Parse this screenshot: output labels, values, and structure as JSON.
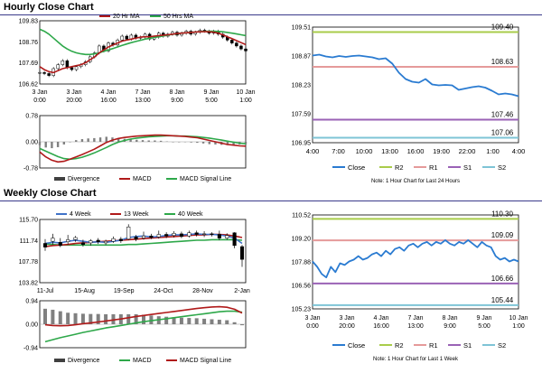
{
  "titles": {
    "hourly": "Hourly Close Chart",
    "weekly": "Weekly Close Chart"
  },
  "colors": {
    "close": "#2a7bd1",
    "ma20": "#b01a1a",
    "ma50": "#2ea84a",
    "r2": "#a9cc4a",
    "r1": "#e59a9a",
    "s1": "#9a62b6",
    "s2": "#7ec4d6",
    "wk4": "#3f72c8",
    "wk13": "#b01a1a",
    "wk40": "#2ea84a",
    "macd": "#b01a1a",
    "signal": "#2ea84a",
    "divergence": "#808080",
    "candle": "#000000"
  },
  "chart_data": [
    {
      "id": "hourly-price",
      "type": "line",
      "legend": [
        "20 Hr MA",
        "50 Hrs MA"
      ],
      "ylim": [
        106.62,
        109.83
      ],
      "yticks": [
        "109.83",
        "108.76",
        "107.69",
        "106.62"
      ],
      "xticks": [
        [
          "3 Jan",
          "0:00"
        ],
        [
          "3 Jan",
          "20:00"
        ],
        [
          "4 Jan",
          "16:00"
        ],
        [
          "7 Jan",
          "13:00"
        ],
        [
          "8 Jan",
          "9:00"
        ],
        [
          "9 Jan",
          "5:00"
        ],
        [
          "10 Jan",
          "1:00"
        ]
      ],
      "close": [
        107.2,
        107.15,
        107.05,
        107.4,
        107.6,
        107.8,
        107.45,
        107.35,
        107.5,
        107.6,
        107.75,
        108.0,
        108.2,
        108.55,
        108.3,
        108.7,
        108.6,
        108.85,
        109.05,
        108.9,
        109.1,
        108.95,
        109.0,
        109.15,
        108.9,
        109.0,
        109.2,
        109.05,
        109.15,
        109.25,
        109.1,
        109.2,
        109.3,
        109.15,
        109.25,
        109.35,
        109.3,
        109.2,
        109.3,
        109.15,
        109.0,
        108.85,
        108.7,
        108.55,
        108.4,
        108.3
      ],
      "ma20": [
        107.5,
        107.35,
        107.25,
        107.2,
        107.3,
        107.4,
        107.45,
        107.5,
        107.55,
        107.6,
        107.7,
        107.85,
        108.0,
        108.2,
        108.35,
        108.5,
        108.6,
        108.7,
        108.8,
        108.85,
        108.9,
        108.95,
        109.0,
        109.02,
        109.02,
        109.05,
        109.08,
        109.1,
        109.12,
        109.15,
        109.18,
        109.2,
        109.22,
        109.24,
        109.26,
        109.27,
        109.28,
        109.27,
        109.25,
        109.2,
        109.12,
        109.02,
        108.92,
        108.82,
        108.72,
        108.62
      ],
      "ma50": [
        109.4,
        109.3,
        109.15,
        108.95,
        108.75,
        108.55,
        108.4,
        108.28,
        108.2,
        108.15,
        108.12,
        108.12,
        108.15,
        108.2,
        108.28,
        108.35,
        108.42,
        108.5,
        108.58,
        108.65,
        108.72,
        108.78,
        108.84,
        108.9,
        108.94,
        108.98,
        109.02,
        109.06,
        109.1,
        109.14,
        109.17,
        109.2,
        109.22,
        109.24,
        109.26,
        109.28,
        109.29,
        109.3,
        109.3,
        109.29,
        109.27,
        109.24,
        109.2,
        109.16,
        109.12,
        109.08
      ]
    },
    {
      "id": "hourly-macd",
      "type": "line",
      "legend": [
        "Divergence",
        "MACD",
        "MACD Signal Line"
      ],
      "ylim": [
        -0.78,
        0.78
      ],
      "yticks": [
        "0.78",
        "0.00",
        "-0.78"
      ],
      "macd": [
        -0.3,
        -0.45,
        -0.55,
        -0.6,
        -0.58,
        -0.52,
        -0.45,
        -0.38,
        -0.3,
        -0.22,
        -0.12,
        -0.02,
        0.05,
        0.1,
        0.13,
        0.15,
        0.17,
        0.18,
        0.19,
        0.2,
        0.2,
        0.19,
        0.18,
        0.17,
        0.16,
        0.14,
        0.12,
        0.08,
        0.04,
        0.0,
        -0.04,
        -0.08,
        -0.1,
        -0.12,
        -0.13
      ],
      "signal": [
        -0.2,
        -0.28,
        -0.36,
        -0.44,
        -0.5,
        -0.52,
        -0.5,
        -0.46,
        -0.4,
        -0.33,
        -0.25,
        -0.17,
        -0.08,
        -0.01,
        0.04,
        0.08,
        0.11,
        0.13,
        0.15,
        0.16,
        0.17,
        0.18,
        0.18,
        0.17,
        0.17,
        0.16,
        0.15,
        0.13,
        0.11,
        0.08,
        0.05,
        0.02,
        -0.01,
        -0.04,
        -0.06
      ],
      "divergence": [
        -0.1,
        -0.17,
        -0.19,
        -0.16,
        -0.08,
        0.0,
        0.05,
        0.08,
        0.1,
        0.11,
        0.13,
        0.15,
        0.13,
        0.11,
        0.09,
        0.07,
        0.06,
        0.05,
        0.04,
        0.04,
        0.03,
        0.01,
        0.0,
        0.0,
        -0.01,
        -0.02,
        -0.03,
        -0.05,
        -0.07,
        -0.08,
        -0.09,
        -0.1,
        -0.09,
        -0.08,
        -0.07
      ]
    },
    {
      "id": "hourly-levels",
      "type": "line",
      "ylim": [
        106.95,
        109.51
      ],
      "yticks": [
        "109.51",
        "108.87",
        "108.23",
        "107.59",
        "106.95"
      ],
      "xticks": [
        "4:00",
        "7:00",
        "10:00",
        "13:00",
        "16:00",
        "19:00",
        "22:00",
        "1:00",
        "4:00"
      ],
      "close": [
        108.88,
        108.9,
        108.86,
        108.84,
        108.87,
        108.85,
        108.87,
        108.88,
        108.86,
        108.84,
        108.8,
        108.82,
        108.7,
        108.5,
        108.36,
        108.3,
        108.28,
        108.36,
        108.24,
        108.22,
        108.23,
        108.22,
        108.12,
        108.15,
        108.18,
        108.2,
        108.17,
        108.1,
        108.02,
        108.04,
        108.02,
        107.98
      ],
      "levels": {
        "R2": 109.4,
        "R1": 108.63,
        "S1": 107.46,
        "S2": 107.06
      },
      "level_labels": {
        "R2": "109.40",
        "R1": "108.63",
        "S1": "107.46",
        "S2": "107.06"
      },
      "legend": [
        "Close",
        "R2",
        "R1",
        "S1",
        "S2"
      ],
      "note": "Note: 1 Hour Chart for Last 24 Hours"
    },
    {
      "id": "weekly-price",
      "type": "line",
      "legend": [
        "4 Week",
        "13 Week",
        "40 Week"
      ],
      "ylim": [
        103.82,
        115.7
      ],
      "yticks": [
        "115.70",
        "111.74",
        "107.78",
        "103.82"
      ],
      "xticks": [
        "11-Jul",
        "15-Aug",
        "19-Sep",
        "24-Oct",
        "28-Nov",
        "2-Jan"
      ],
      "candles": [
        {
          "o": 111.2,
          "c": 110.5,
          "h": 112.0,
          "l": 109.8
        },
        {
          "o": 111.6,
          "c": 112.2,
          "h": 113.0,
          "l": 111.0
        },
        {
          "o": 111.4,
          "c": 110.8,
          "h": 112.2,
          "l": 110.5
        },
        {
          "o": 111.5,
          "c": 111.9,
          "h": 112.8,
          "l": 111.0
        },
        {
          "o": 111.9,
          "c": 112.3,
          "h": 112.6,
          "l": 111.5
        },
        {
          "o": 111.3,
          "c": 111.0,
          "h": 111.9,
          "l": 110.6
        },
        {
          "o": 111.3,
          "c": 111.7,
          "h": 112.0,
          "l": 110.8
        },
        {
          "o": 111.8,
          "c": 111.5,
          "h": 112.2,
          "l": 111.1
        },
        {
          "o": 111.3,
          "c": 111.6,
          "h": 111.9,
          "l": 110.9
        },
        {
          "o": 111.6,
          "c": 112.1,
          "h": 112.5,
          "l": 111.3
        },
        {
          "o": 112.0,
          "c": 111.7,
          "h": 112.4,
          "l": 111.3
        },
        {
          "o": 112.0,
          "c": 114.3,
          "h": 114.8,
          "l": 111.8
        },
        {
          "o": 112.4,
          "c": 112.0,
          "h": 112.8,
          "l": 111.6
        },
        {
          "o": 112.2,
          "c": 112.6,
          "h": 113.4,
          "l": 111.9
        },
        {
          "o": 112.6,
          "c": 112.3,
          "h": 113.0,
          "l": 112.0
        },
        {
          "o": 112.4,
          "c": 112.9,
          "h": 113.6,
          "l": 112.1
        },
        {
          "o": 112.9,
          "c": 112.6,
          "h": 113.3,
          "l": 112.2
        },
        {
          "o": 112.7,
          "c": 113.1,
          "h": 113.5,
          "l": 112.3
        },
        {
          "o": 113.0,
          "c": 112.5,
          "h": 113.4,
          "l": 112.2
        },
        {
          "o": 112.6,
          "c": 113.2,
          "h": 113.6,
          "l": 112.3
        },
        {
          "o": 113.2,
          "c": 112.9,
          "h": 113.6,
          "l": 112.5
        },
        {
          "o": 112.9,
          "c": 113.0,
          "h": 113.5,
          "l": 112.4
        },
        {
          "o": 113.0,
          "c": 112.9,
          "h": 113.3,
          "l": 112.5
        },
        {
          "o": 112.9,
          "c": 112.2,
          "h": 113.6,
          "l": 111.8
        },
        {
          "o": 112.2,
          "c": 112.7,
          "h": 113.1,
          "l": 111.9
        },
        {
          "o": 113.2,
          "c": 110.8,
          "h": 113.3,
          "l": 110.3
        },
        {
          "o": 110.6,
          "c": 108.2,
          "h": 110.9,
          "l": 106.8
        }
      ],
      "wk4": [
        111.2,
        111.4,
        111.3,
        111.6,
        111.8,
        111.6,
        111.4,
        111.5,
        111.4,
        111.6,
        111.8,
        112.3,
        112.5,
        112.6,
        112.4,
        112.5,
        112.7,
        112.8,
        112.8,
        112.9,
        113.0,
        112.9,
        112.9,
        112.8,
        112.6,
        112.2,
        111.2
      ],
      "wk13": [
        110.6,
        110.8,
        110.9,
        111.0,
        111.2,
        111.3,
        111.4,
        111.5,
        111.6,
        111.7,
        111.8,
        111.9,
        112.0,
        112.1,
        112.2,
        112.3,
        112.4,
        112.5,
        112.6,
        112.7,
        112.8,
        112.8,
        112.9,
        112.9,
        112.8,
        112.6,
        112.3
      ],
      "wk40": [
        111.1,
        111.0,
        110.9,
        110.9,
        110.9,
        110.9,
        110.9,
        110.9,
        110.9,
        110.9,
        110.9,
        111.0,
        111.0,
        111.1,
        111.2,
        111.3,
        111.4,
        111.5,
        111.6,
        111.7,
        111.8,
        111.8,
        111.9,
        111.9,
        111.9,
        111.9,
        111.8
      ]
    },
    {
      "id": "weekly-macd",
      "type": "line",
      "legend": [
        "Divergence",
        "MACD",
        "MACD Signal Line"
      ],
      "ylim": [
        -0.94,
        0.94
      ],
      "yticks": [
        "0.94",
        "0.00",
        "-0.94"
      ],
      "macd": [
        -0.02,
        -0.05,
        -0.06,
        -0.05,
        -0.02,
        0.02,
        0.05,
        0.09,
        0.13,
        0.17,
        0.21,
        0.26,
        0.31,
        0.35,
        0.39,
        0.43,
        0.47,
        0.51,
        0.55,
        0.59,
        0.63,
        0.66,
        0.69,
        0.7,
        0.68,
        0.6,
        0.45
      ],
      "signal": [
        -0.7,
        -0.62,
        -0.54,
        -0.47,
        -0.4,
        -0.33,
        -0.27,
        -0.21,
        -0.15,
        -0.1,
        -0.05,
        0.0,
        0.05,
        0.1,
        0.14,
        0.18,
        0.22,
        0.26,
        0.3,
        0.34,
        0.38,
        0.42,
        0.46,
        0.5,
        0.52,
        0.52,
        0.48
      ],
      "divergence": [
        0.62,
        0.58,
        0.52,
        0.46,
        0.44,
        0.42,
        0.41,
        0.41,
        0.4,
        0.4,
        0.4,
        0.4,
        0.4,
        0.38,
        0.35,
        0.32,
        0.3,
        0.28,
        0.26,
        0.25,
        0.24,
        0.22,
        0.2,
        0.18,
        0.16,
        0.08,
        -0.04
      ]
    },
    {
      "id": "weekly-levels",
      "type": "line",
      "ylim": [
        105.23,
        110.52
      ],
      "yticks": [
        "110.52",
        "109.20",
        "107.88",
        "106.56",
        "105.23"
      ],
      "xticks": [
        [
          "3 Jan",
          "0:00"
        ],
        [
          "3 Jan",
          "20:00"
        ],
        [
          "4 Jan",
          "16:00"
        ],
        [
          "7 Jan",
          "13:00"
        ],
        [
          "8 Jan",
          "9:00"
        ],
        [
          "9 Jan",
          "5:00"
        ],
        [
          "10 Jan",
          "1:00"
        ]
      ],
      "close": [
        107.9,
        107.6,
        107.2,
        107.0,
        107.6,
        107.3,
        107.8,
        107.7,
        107.9,
        108.0,
        108.2,
        108.0,
        108.1,
        108.3,
        108.4,
        108.2,
        108.5,
        108.3,
        108.6,
        108.7,
        108.5,
        108.8,
        108.9,
        108.7,
        108.9,
        109.0,
        108.8,
        109.0,
        108.9,
        109.1,
        108.9,
        108.8,
        109.0,
        108.9,
        109.1,
        108.9,
        108.7,
        109.0,
        108.8,
        108.7,
        108.2,
        108.0,
        108.1,
        107.9,
        108.0,
        107.9
      ],
      "levels": {
        "R2": 110.3,
        "R1": 109.09,
        "S1": 106.66,
        "S2": 105.44
      },
      "level_labels": {
        "R2": "110.30",
        "R1": "109.09",
        "S1": "106.66",
        "S2": "105.44"
      },
      "legend": [
        "Close",
        "R2",
        "R1",
        "S1",
        "S2"
      ],
      "note": "Note: 1 Hour Chart for Last 1 Week"
    }
  ]
}
